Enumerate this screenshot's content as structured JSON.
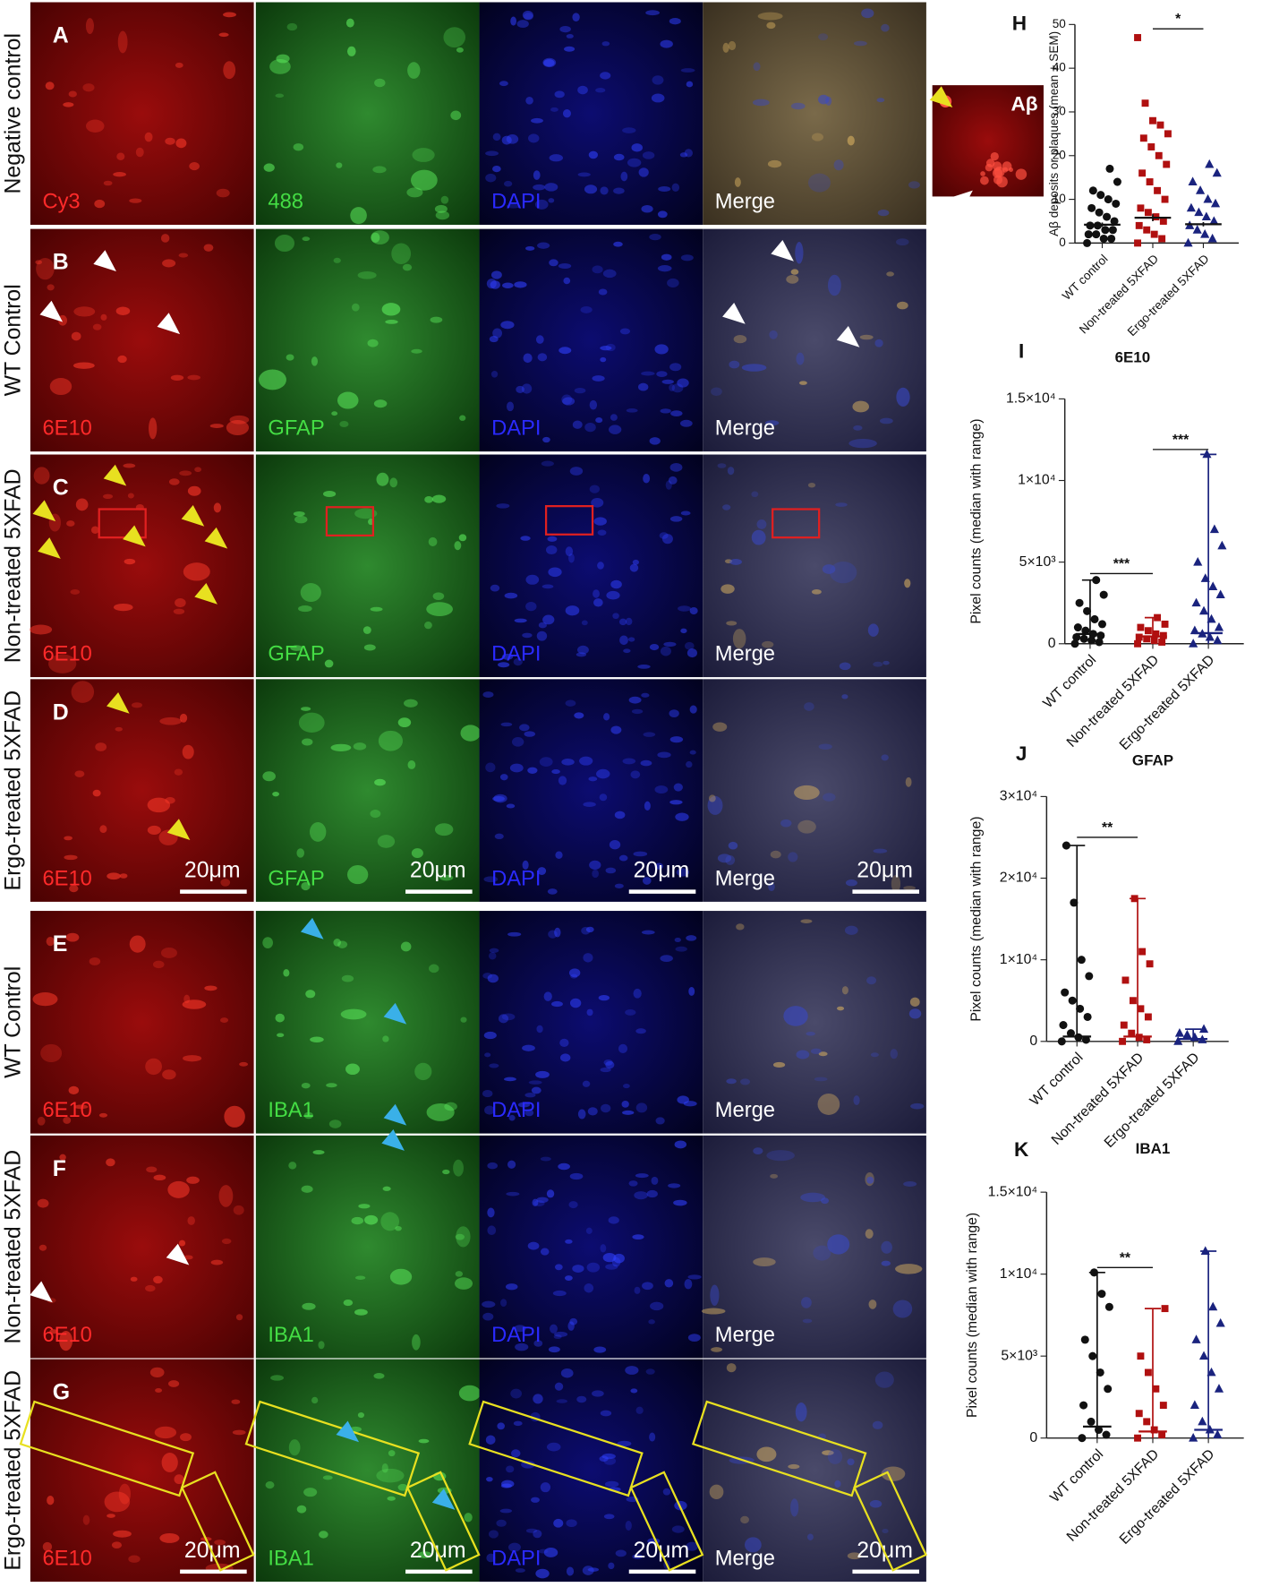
{
  "panels": {
    "rows": [
      {
        "letter": "A",
        "group": "Negative control",
        "channels": [
          "Cy3",
          "488",
          "DAPI",
          "Merge"
        ]
      },
      {
        "letter": "B",
        "group": "WT Control",
        "channels": [
          "6E10",
          "GFAP",
          "DAPI",
          "Merge"
        ]
      },
      {
        "letter": "C",
        "group": "Non-treated 5XFAD",
        "channels": [
          "6E10",
          "GFAP",
          "DAPI",
          "Merge"
        ]
      },
      {
        "letter": "D",
        "group": "Ergo-treated 5XFAD",
        "channels": [
          "6E10",
          "GFAP",
          "DAPI",
          "Merge"
        ],
        "scale_bars": [
          "20μm",
          "20μm",
          "20μm",
          "20μm"
        ]
      },
      {
        "letter": "E",
        "group": "WT Control",
        "channels": [
          "6E10",
          "IBA1",
          "DAPI",
          "Merge"
        ]
      },
      {
        "letter": "F",
        "group": "Non-treated 5XFAD",
        "channels": [
          "6E10",
          "IBA1",
          "DAPI",
          "Merge"
        ]
      },
      {
        "letter": "G",
        "group": "Ergo-treated 5XFAD",
        "channels": [
          "6E10",
          "IBA1",
          "DAPI",
          "Merge"
        ],
        "scale_bars": [
          "20μm",
          "20μm",
          "20μm",
          "20μm"
        ]
      }
    ],
    "inset": {
      "label": "Aβ"
    }
  },
  "chart_data": [
    {
      "type": "scatter",
      "panel": "H",
      "ylabel": "Aβ deposits or plaques (mean ± SEM)",
      "categories": [
        "WT control",
        "Non-treated 5XFAD",
        "Ergo-treated 5XFAD"
      ],
      "ylim": [
        0,
        50
      ],
      "yticks": [
        0,
        10,
        20,
        30,
        40,
        50
      ],
      "summary": "mean_sem",
      "series": [
        {
          "color": "#111111",
          "marker": "circle",
          "values": [
            0,
            1,
            1,
            2,
            2,
            3,
            3,
            4,
            4,
            5,
            6,
            7,
            8,
            9,
            10,
            11,
            12,
            14,
            17
          ],
          "center": 4.2,
          "error": 0.5
        },
        {
          "color": "#b01010",
          "marker": "square",
          "values": [
            0,
            1,
            2,
            3,
            4,
            5,
            6,
            7,
            8,
            10,
            12,
            14,
            16,
            18,
            20,
            22,
            24,
            25,
            27,
            28,
            32,
            47
          ],
          "center": 5.8,
          "error": 0.8
        },
        {
          "color": "#1a237e",
          "marker": "triangle",
          "values": [
            0,
            1,
            2,
            3,
            4,
            5,
            6,
            7,
            8,
            9,
            10,
            12,
            14,
            16,
            18
          ],
          "center": 4.3,
          "error": 0.5
        }
      ],
      "annotations": [
        {
          "text": "*",
          "from": 1,
          "to": 2,
          "y": 49
        }
      ]
    },
    {
      "type": "scatter",
      "panel": "I",
      "title": "6E10",
      "ylabel": "Pixel counts (median with range)",
      "categories": [
        "WT control",
        "Non-treated 5XFAD",
        "Ergo-treated 5XFAD"
      ],
      "ylim": [
        0,
        15000
      ],
      "yticks": [
        0,
        {
          "value": 5000,
          "label": "5×10³"
        },
        {
          "value": 10000,
          "label": "1×10⁴"
        },
        {
          "value": 15000,
          "label": "1.5×10⁴"
        }
      ],
      "summary": "median_range",
      "series": [
        {
          "color": "#111111",
          "marker": "circle",
          "values": [
            0,
            100,
            200,
            300,
            400,
            500,
            600,
            800,
            1000,
            1200,
            1500,
            2000,
            2500,
            3000,
            3900
          ],
          "center": 600,
          "range": [
            0,
            3900
          ]
        },
        {
          "color": "#b01010",
          "marker": "square",
          "values": [
            0,
            100,
            200,
            300,
            400,
            500,
            600,
            800,
            1000,
            1200,
            1600
          ],
          "center": 450,
          "range": [
            0,
            1600
          ]
        },
        {
          "color": "#1a237e",
          "marker": "triangle",
          "values": [
            0,
            200,
            400,
            600,
            800,
            1000,
            1500,
            2000,
            2500,
            3000,
            3500,
            4000,
            5000,
            6000,
            7000,
            11600
          ],
          "center": 650,
          "range": [
            0,
            11600
          ]
        }
      ],
      "annotations": [
        {
          "text": "***",
          "from": 0,
          "to": 1,
          "y": 4300
        },
        {
          "text": "***",
          "from": 1,
          "to": 2,
          "y": 11900
        }
      ]
    },
    {
      "type": "scatter",
      "panel": "J",
      "title": "GFAP",
      "ylabel": "Pixel counts (median with range)",
      "categories": [
        "WT control",
        "Non-treated 5XFAD",
        "Ergo-treated 5XFAD"
      ],
      "ylim": [
        0,
        30000
      ],
      "yticks": [
        0,
        {
          "value": 10000,
          "label": "1×10⁴"
        },
        {
          "value": 20000,
          "label": "2×10⁴"
        },
        {
          "value": 30000,
          "label": "3×10⁴"
        }
      ],
      "summary": "median_range",
      "series": [
        {
          "color": "#111111",
          "marker": "circle",
          "values": [
            0,
            200,
            500,
            1000,
            2000,
            3000,
            4000,
            5000,
            6000,
            8000,
            10000,
            17000,
            24000
          ],
          "center": 600,
          "range": [
            0,
            24000
          ]
        },
        {
          "color": "#b01010",
          "marker": "square",
          "values": [
            0,
            200,
            500,
            1000,
            2000,
            3000,
            4000,
            5000,
            7500,
            9500,
            11000,
            17500
          ],
          "center": 600,
          "range": [
            0,
            17500
          ]
        },
        {
          "color": "#1a237e",
          "marker": "triangle",
          "values": [
            0,
            200,
            500,
            800,
            1000,
            1500
          ],
          "center": 300,
          "range": [
            0,
            1500
          ]
        }
      ],
      "annotations": [
        {
          "text": "**",
          "from": 0,
          "to": 1,
          "y": 25000
        }
      ]
    },
    {
      "type": "scatter",
      "panel": "K",
      "title": "IBA1",
      "ylabel": "Pixel counts (median with range)",
      "categories": [
        "WT control",
        "Non-treated 5XFAD",
        "Ergo-treated 5XFAD"
      ],
      "ylim": [
        0,
        15000
      ],
      "yticks": [
        0,
        {
          "value": 5000,
          "label": "5×10³"
        },
        {
          "value": 10000,
          "label": "1×10⁴"
        },
        {
          "value": 15000,
          "label": "1.5×10⁴"
        }
      ],
      "summary": "median_range",
      "series": [
        {
          "color": "#111111",
          "marker": "circle",
          "values": [
            0,
            200,
            500,
            1000,
            2000,
            3000,
            4000,
            5000,
            6000,
            8000,
            8800,
            10100
          ],
          "center": 700,
          "range": [
            0,
            10100
          ]
        },
        {
          "color": "#b01010",
          "marker": "square",
          "values": [
            0,
            200,
            500,
            1000,
            1500,
            2000,
            3000,
            4000,
            5000,
            7900
          ],
          "center": 400,
          "range": [
            0,
            7900
          ]
        },
        {
          "color": "#1a237e",
          "marker": "triangle",
          "values": [
            0,
            200,
            500,
            1000,
            2000,
            3000,
            4000,
            5000,
            6000,
            7000,
            8000,
            11400
          ],
          "center": 500,
          "range": [
            0,
            11400
          ]
        }
      ],
      "annotations": [
        {
          "text": "**",
          "from": 0,
          "to": 1,
          "y": 10400
        }
      ]
    }
  ]
}
